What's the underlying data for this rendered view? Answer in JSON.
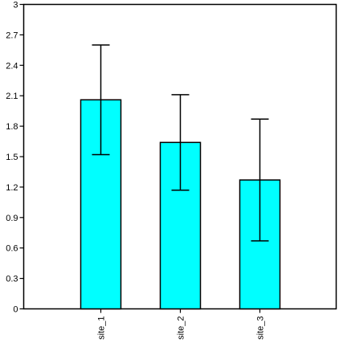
{
  "chart_data": {
    "type": "bar",
    "title": "",
    "xlabel": "",
    "ylabel": "",
    "categories": [
      "site_1",
      "site_2",
      "site_3"
    ],
    "values": [
      2.06,
      1.64,
      1.27
    ],
    "error_bars": [
      {
        "low": 1.52,
        "high": 2.6
      },
      {
        "low": 1.17,
        "high": 2.11
      },
      {
        "low": 0.67,
        "high": 1.87
      }
    ],
    "ylim": [
      0,
      3
    ],
    "yticks": [
      "0",
      "0.3",
      "0.6",
      "0.9",
      "1.2",
      "1.5",
      "1.8",
      "2.1",
      "2.4",
      "2.7",
      "3"
    ],
    "grid": false,
    "legend": "none",
    "bar_color": "#00ffff",
    "edge_color": "#000000"
  }
}
